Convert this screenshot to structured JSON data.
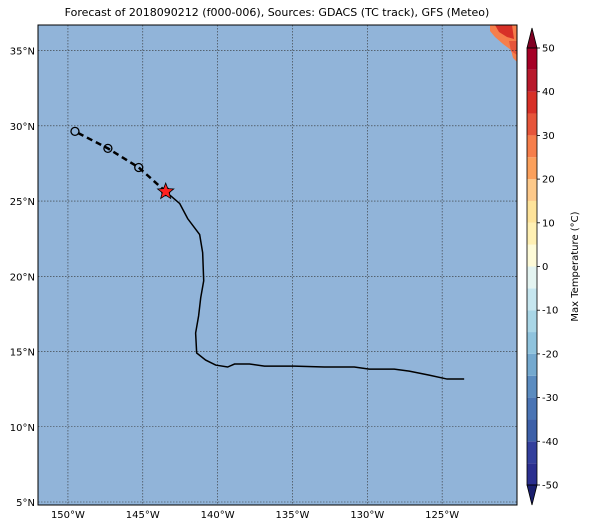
{
  "chart_data": {
    "type": "map",
    "title": "Forecast of 2018090212 (f000-006), Sources: GDACS (TC track), GFS (Meteo)",
    "xlim": [
      -152,
      -120
    ],
    "ylim": [
      4.8,
      36.7
    ],
    "xticks": [
      {
        "value": -150,
        "label": "150°W"
      },
      {
        "value": -145,
        "label": "145°W"
      },
      {
        "value": -140,
        "label": "140°W"
      },
      {
        "value": -135,
        "label": "135°W"
      },
      {
        "value": -130,
        "label": "130°W"
      },
      {
        "value": -125,
        "label": "125°W"
      }
    ],
    "yticks": [
      {
        "value": 5,
        "label": "5°N"
      },
      {
        "value": 10,
        "label": "10°N"
      },
      {
        "value": 15,
        "label": "15°N"
      },
      {
        "value": 20,
        "label": "20°N"
      },
      {
        "value": 25,
        "label": "25°N"
      },
      {
        "value": 30,
        "label": "30°N"
      },
      {
        "value": 35,
        "label": "35°N"
      }
    ],
    "grid": true,
    "ocean_color": "#91b4d9",
    "track": {
      "color": "#000000",
      "lon": [
        -123.53,
        -124.67,
        -125.87,
        -127.2,
        -128.2,
        -129.87,
        -130.87,
        -132.87,
        -134.87,
        -136.87,
        -137.87,
        -138.87,
        -139.33,
        -140.13,
        -140.8,
        -141.4,
        -141.47,
        -141.27,
        -141.13,
        -140.93,
        -141.0,
        -141.2,
        -142.0,
        -142.53,
        -143.47
      ],
      "lat": [
        13.17,
        13.17,
        13.43,
        13.7,
        13.83,
        13.83,
        13.97,
        13.97,
        14.03,
        14.03,
        14.17,
        14.17,
        13.97,
        14.1,
        14.43,
        14.9,
        16.23,
        17.37,
        18.57,
        19.7,
        21.57,
        22.77,
        23.83,
        24.83,
        25.63
      ]
    },
    "forecast": {
      "color": "#000000",
      "lon": [
        -143.47,
        -145.27,
        -147.33,
        -149.53
      ],
      "lat": [
        25.63,
        27.23,
        28.5,
        29.63
      ]
    },
    "current": {
      "color": "#ff2020",
      "lon": -143.47,
      "lat": 25.63
    },
    "colorbar": {
      "label": "Max Temperature (°C)",
      "levels": [
        -50,
        -45,
        -40,
        -35,
        -30,
        -25,
        -20,
        -15,
        -10,
        -5,
        0,
        5,
        10,
        15,
        20,
        25,
        30,
        35,
        40,
        45,
        50
      ],
      "colors": [
        "#2b2f8f",
        "#333f9c",
        "#3d60a8",
        "#4a74b4",
        "#5b8cc0",
        "#74a9cf",
        "#8fc3dd",
        "#a9d6e6",
        "#c6e6ef",
        "#e4f4f1",
        "#fefbd8",
        "#fff0b3",
        "#fee39a",
        "#fdc98a",
        "#fba05c",
        "#f67e4b",
        "#e6553a",
        "#d73027",
        "#b8192b",
        "#a50026"
      ],
      "under_color": "#1a1f6e",
      "over_color": "#7f0022",
      "ticks": [
        -50,
        -40,
        -30,
        -20,
        -10,
        0,
        10,
        20,
        30,
        40,
        50
      ]
    }
  }
}
